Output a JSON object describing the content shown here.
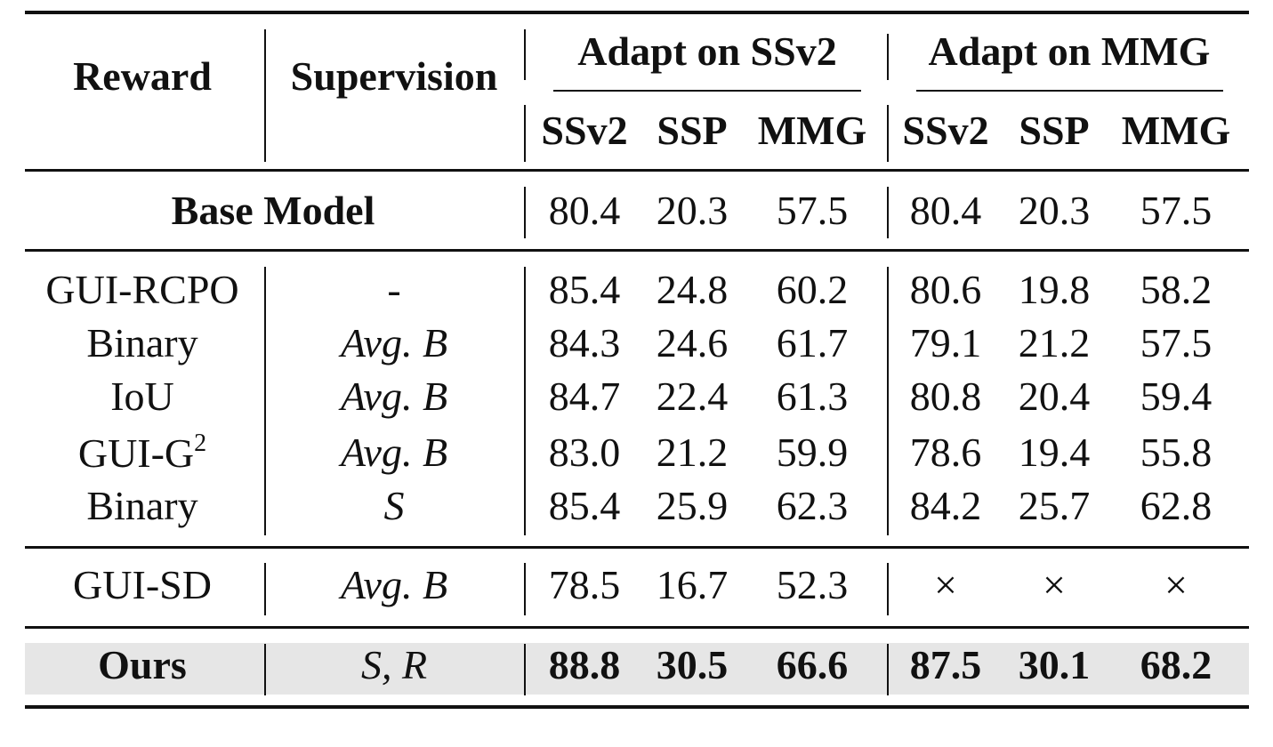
{
  "header": {
    "reward": "Reward",
    "supervision": "Supervision",
    "groups": [
      "Adapt on SSv2",
      "Adapt on MMG"
    ],
    "subcols": [
      "SSv2",
      "SSP",
      "MMG",
      "SSv2",
      "SSP",
      "MMG"
    ]
  },
  "base": {
    "label": "Base Model",
    "values": [
      "80.4",
      "20.3",
      "57.5",
      "80.4",
      "20.3",
      "57.5"
    ]
  },
  "rows": [
    {
      "reward": "GUI-RCPO",
      "supervision": "-",
      "values": [
        "85.4",
        "24.8",
        "60.2",
        "80.6",
        "19.8",
        "58.2"
      ]
    },
    {
      "reward": "Binary",
      "supervision": "Avg. B",
      "values": [
        "84.3",
        "24.6",
        "61.7",
        "79.1",
        "21.2",
        "57.5"
      ]
    },
    {
      "reward": "IoU",
      "supervision": "Avg. B",
      "values": [
        "84.7",
        "22.4",
        "61.3",
        "80.8",
        "20.4",
        "59.4"
      ]
    },
    {
      "reward": "GUI-G",
      "reward_sup": "2",
      "supervision": "Avg. B",
      "values": [
        "83.0",
        "21.2",
        "59.9",
        "78.6",
        "19.4",
        "55.8"
      ]
    },
    {
      "reward": "Binary",
      "supervision": "S",
      "values": [
        "85.4",
        "25.9",
        "62.3",
        "84.2",
        "25.7",
        "62.8"
      ]
    },
    {
      "reward": "GUI-SD",
      "supervision": "Avg. B",
      "values": [
        "78.5",
        "16.7",
        "52.3",
        "×",
        "×",
        "×"
      ]
    },
    {
      "reward": "Ours",
      "supervision": "S, R",
      "values": [
        "88.8",
        "30.5",
        "66.6",
        "87.5",
        "30.1",
        "68.2"
      ]
    }
  ]
}
